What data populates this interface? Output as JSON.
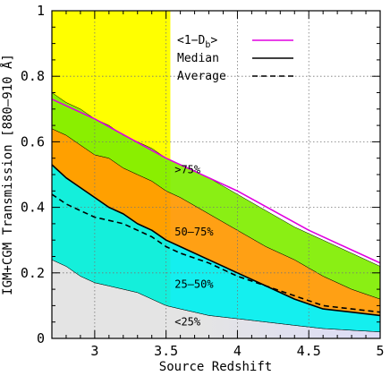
{
  "chart_data": {
    "type": "area",
    "xlabel": "Source Redshift",
    "ylabel": "IGM+CGM Transmission [880–910 Å]",
    "xlim": [
      2.7,
      5.0
    ],
    "ylim": [
      0,
      1
    ],
    "x_ticks": [
      3,
      3.5,
      4,
      4.5,
      5
    ],
    "x_tick_labels": [
      "3",
      "3.5",
      "4",
      "4.5",
      "5"
    ],
    "y_ticks": [
      0,
      0.2,
      0.4,
      0.6,
      0.8,
      1
    ],
    "y_tick_labels": [
      "0",
      "0.2",
      "0.4",
      "0.6",
      "0.8",
      "1"
    ],
    "grid": true,
    "legend_position": "top-right",
    "highlight_region": {
      "x": [
        2.7,
        3.53
      ],
      "color": "#ffff00"
    },
    "legend": [
      {
        "label": "<1−D",
        "sub": "b",
        "suffix": ">",
        "color": "#e000e0",
        "style": "solid"
      },
      {
        "label": "Median",
        "color": "#000000",
        "style": "solid"
      },
      {
        "label": "Average",
        "color": "#000000",
        "style": "dashed"
      }
    ],
    "bands": [
      {
        "label": "<25%",
        "color": "#e4e4e4",
        "color_right": "#dcdcf8",
        "x": [
          2.7,
          2.8,
          2.9,
          3.0,
          3.1,
          3.2,
          3.3,
          3.4,
          3.5,
          3.6,
          3.8,
          4.0,
          4.2,
          4.4,
          4.6,
          4.8,
          5.0
        ],
        "lower": [
          0,
          0,
          0,
          0,
          0,
          0,
          0,
          0,
          0,
          0,
          0,
          0,
          0,
          0,
          0,
          0,
          0
        ],
        "upper": [
          0.24,
          0.22,
          0.19,
          0.17,
          0.16,
          0.15,
          0.14,
          0.12,
          0.1,
          0.09,
          0.07,
          0.06,
          0.05,
          0.04,
          0.03,
          0.025,
          0.02
        ]
      },
      {
        "label": "25–50%",
        "color": "#00eeee",
        "x": [
          2.7,
          2.8,
          2.9,
          3.0,
          3.1,
          3.2,
          3.3,
          3.4,
          3.5,
          3.6,
          3.8,
          4.0,
          4.2,
          4.4,
          4.6,
          4.8,
          5.0
        ],
        "lower": [
          0.24,
          0.22,
          0.19,
          0.17,
          0.16,
          0.15,
          0.14,
          0.12,
          0.1,
          0.09,
          0.07,
          0.06,
          0.05,
          0.04,
          0.03,
          0.025,
          0.02
        ],
        "upper": [
          0.53,
          0.49,
          0.46,
          0.43,
          0.4,
          0.38,
          0.35,
          0.33,
          0.3,
          0.28,
          0.24,
          0.2,
          0.16,
          0.12,
          0.09,
          0.08,
          0.07
        ]
      },
      {
        "label": "50–75%",
        "color": "#ff9800",
        "x": [
          2.7,
          2.8,
          2.9,
          3.0,
          3.1,
          3.2,
          3.3,
          3.4,
          3.5,
          3.6,
          3.8,
          4.0,
          4.2,
          4.4,
          4.6,
          4.8,
          5.0
        ],
        "lower": [
          0.53,
          0.49,
          0.46,
          0.43,
          0.4,
          0.38,
          0.35,
          0.33,
          0.3,
          0.28,
          0.24,
          0.2,
          0.16,
          0.12,
          0.09,
          0.08,
          0.07
        ],
        "upper": [
          0.64,
          0.62,
          0.59,
          0.56,
          0.55,
          0.52,
          0.5,
          0.48,
          0.45,
          0.43,
          0.38,
          0.33,
          0.28,
          0.24,
          0.19,
          0.15,
          0.12
        ]
      },
      {
        "label": ">75%",
        "color": "#80ee00",
        "x": [
          2.7,
          2.8,
          2.9,
          3.0,
          3.1,
          3.2,
          3.3,
          3.4,
          3.5,
          3.6,
          3.8,
          4.0,
          4.2,
          4.4,
          4.6,
          4.8,
          5.0
        ],
        "lower": [
          0.64,
          0.62,
          0.59,
          0.56,
          0.55,
          0.52,
          0.5,
          0.48,
          0.45,
          0.43,
          0.38,
          0.33,
          0.28,
          0.24,
          0.19,
          0.15,
          0.12
        ],
        "upper": [
          0.75,
          0.72,
          0.7,
          0.67,
          0.65,
          0.62,
          0.6,
          0.58,
          0.55,
          0.53,
          0.49,
          0.44,
          0.39,
          0.34,
          0.3,
          0.26,
          0.22
        ]
      }
    ],
    "band_label_positions": [
      {
        "label": ">75%",
        "x": 3.56,
        "y": 0.515
      },
      {
        "label": "50–75%",
        "x": 3.56,
        "y": 0.325
      },
      {
        "label": "25–50%",
        "x": 3.56,
        "y": 0.165
      },
      {
        "label": "<25%",
        "x": 3.56,
        "y": 0.05
      }
    ],
    "series": [
      {
        "name": "<1−D_b>",
        "color": "#e000e0",
        "style": "solid",
        "x": [
          2.7,
          3.0,
          3.5,
          4.0,
          4.5,
          5.0
        ],
        "y": [
          0.73,
          0.67,
          0.55,
          0.45,
          0.33,
          0.23
        ]
      },
      {
        "name": "Median",
        "color": "#000000",
        "style": "solid",
        "x": [
          2.7,
          2.8,
          2.9,
          3.0,
          3.1,
          3.2,
          3.3,
          3.4,
          3.5,
          3.6,
          3.8,
          4.0,
          4.2,
          4.4,
          4.6,
          4.8,
          5.0
        ],
        "y": [
          0.53,
          0.49,
          0.46,
          0.43,
          0.4,
          0.38,
          0.35,
          0.33,
          0.3,
          0.28,
          0.24,
          0.2,
          0.16,
          0.12,
          0.09,
          0.08,
          0.07
        ]
      },
      {
        "name": "Average",
        "color": "#000000",
        "style": "dashed",
        "x": [
          2.7,
          2.8,
          2.9,
          3.0,
          3.1,
          3.2,
          3.3,
          3.4,
          3.5,
          3.6,
          3.8,
          4.0,
          4.2,
          4.4,
          4.6,
          4.8,
          5.0
        ],
        "y": [
          0.44,
          0.41,
          0.39,
          0.37,
          0.36,
          0.35,
          0.33,
          0.31,
          0.28,
          0.26,
          0.23,
          0.19,
          0.16,
          0.13,
          0.1,
          0.09,
          0.08
        ]
      }
    ]
  }
}
